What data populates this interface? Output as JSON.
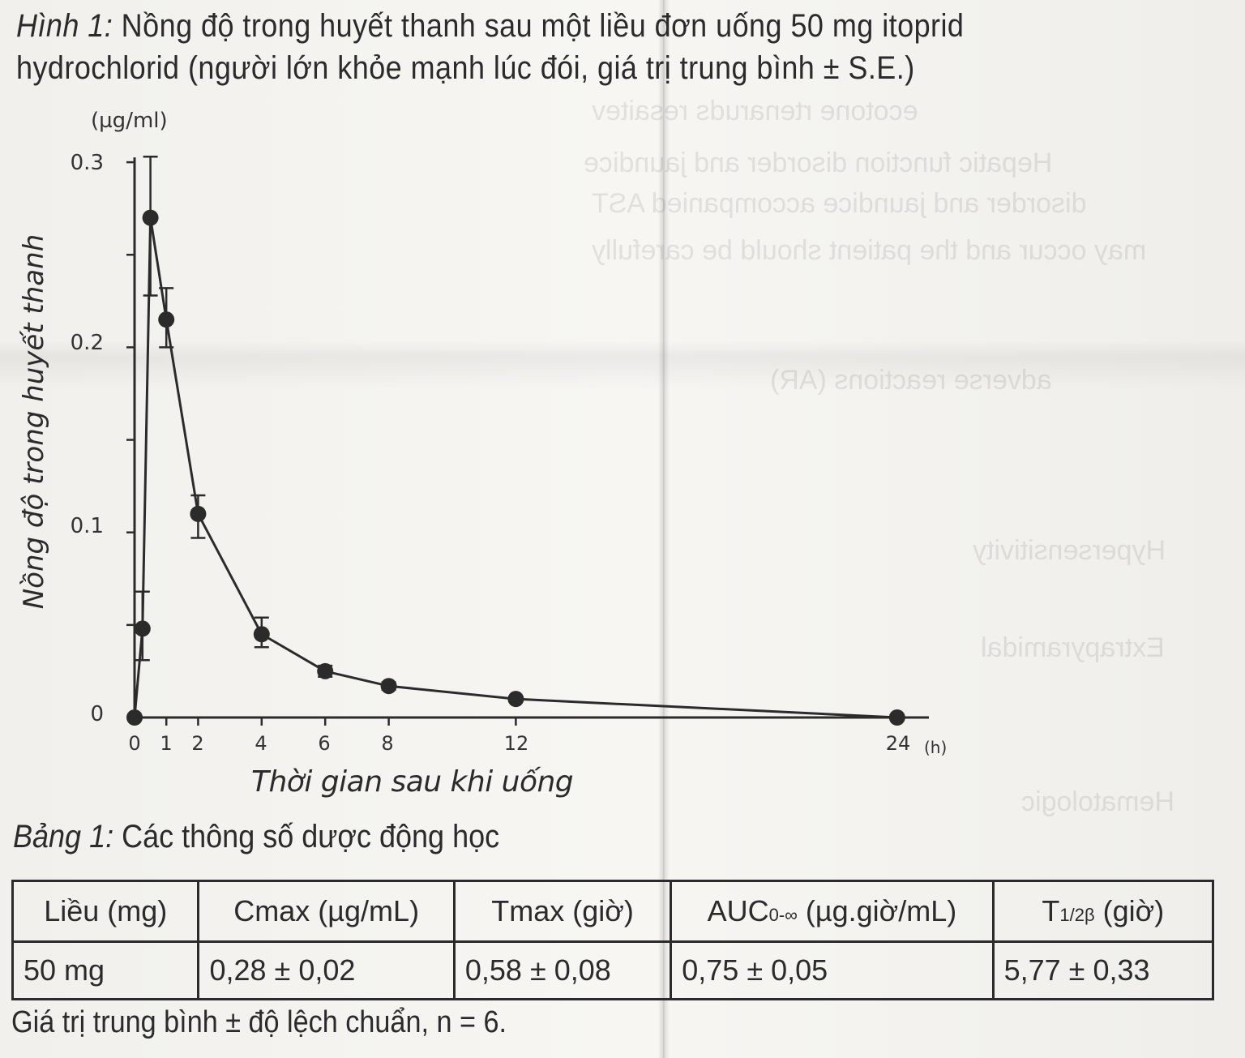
{
  "figure_caption": {
    "label": "Hình 1:",
    "text": "Nồng độ trong huyết thanh sau một liều đơn uống 50 mg itoprid hydrochlorid (người lớn khỏe mạnh lúc đói, giá trị trung bình ± S.E.)"
  },
  "chart_data": {
    "type": "line",
    "title": "Nồng độ trong huyết thanh sau một liều đơn uống 50 mg itoprid hydrochlorid (người lớn khỏe mạnh lúc đói, giá trị trung bình ± S.E.)",
    "xlabel": "Thời gian sau khi uống",
    "x_unit": "(h)",
    "ylabel": "Nồng độ trong huyết thanh",
    "y_unit": "(µg/ml)",
    "xlim": [
      0,
      24
    ],
    "ylim": [
      0,
      0.3
    ],
    "x_ticks": [
      "0",
      "1",
      "2",
      "4",
      "6",
      "8",
      "12",
      "24"
    ],
    "y_ticks": [
      "0",
      "0.1",
      "0.2",
      "0.3"
    ],
    "grid": false,
    "legend": null,
    "series": [
      {
        "name": "Itoprid hydrochlorid 50 mg",
        "marker": "filled-circle",
        "x": [
          0,
          0.25,
          0.5,
          1,
          2,
          4,
          6,
          8,
          12,
          24
        ],
        "values": [
          0.0,
          0.048,
          0.27,
          0.215,
          0.11,
          0.045,
          0.025,
          0.017,
          0.01,
          0.0
        ],
        "error_low": [
          0.0,
          0.031,
          0.228,
          0.2,
          0.097,
          0.038,
          0.022,
          0.015,
          0.009,
          0.0
        ],
        "error_high": [
          0.0,
          0.068,
          0.303,
          0.232,
          0.12,
          0.054,
          0.028,
          0.019,
          0.011,
          0.0
        ]
      }
    ]
  },
  "axis": {
    "y_unit": "(µg/ml)",
    "y_title": "Nồng độ trong huyết thanh",
    "y_ticks": [
      "0.3",
      "0.2",
      "0.1",
      "0"
    ],
    "x_ticks": [
      "0",
      "1",
      "2",
      "4",
      "6",
      "8",
      "12",
      "24"
    ],
    "x_unit": "(h)",
    "x_title": "Thời gian sau khi uống"
  },
  "table_caption": {
    "label": "Bảng 1:",
    "text": "Các thông số dược động học"
  },
  "table": {
    "headers": [
      {
        "main": "Liều (mg)"
      },
      {
        "main": "Cmax (µg/mL)"
      },
      {
        "main": "Tmax (giờ)"
      },
      {
        "main": "AUC",
        "sub": "0-∞",
        "tail": " (µg.giờ/mL)"
      },
      {
        "main": "T",
        "sub": "1/2β",
        "tail": " (giờ)"
      }
    ],
    "rows": [
      [
        "50 mg",
        "0,28 ± 0,02",
        "0,58 ± 0,08",
        "0,75 ± 0,05",
        "5,77 ± 0,33"
      ]
    ]
  },
  "footnote": "Giá trị trung bình ± độ lệch chuẩn, n = 6.",
  "colors": {
    "ink": "#2b2b2b",
    "paper": "#f4f3f0"
  }
}
